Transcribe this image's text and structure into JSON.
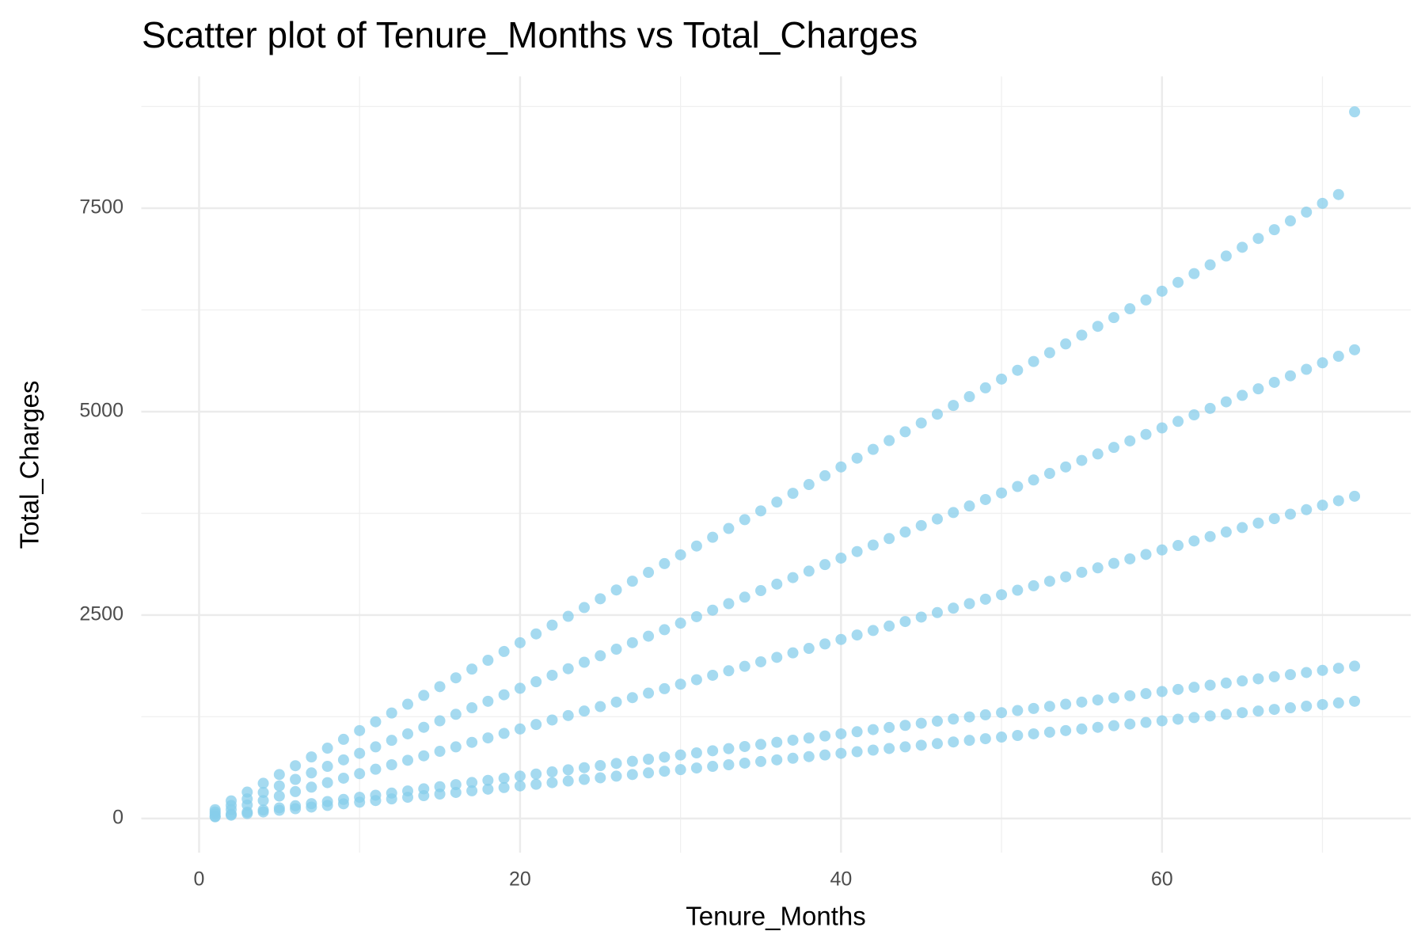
{
  "chart_data": {
    "type": "scatter",
    "title": "Scatter plot of Tenure_Months vs Total_Charges",
    "x_label": "Tenure_Months",
    "y_label": "Total_Charges",
    "xlim": [
      -3.6,
      75.5
    ],
    "ylim": [
      -420,
      9120
    ],
    "xticks": [
      0,
      20,
      40,
      60
    ],
    "yticks": [
      0,
      2500,
      5000,
      7500
    ],
    "xticks_minor": [
      10,
      30,
      50,
      70
    ],
    "yticks_minor": [
      1250,
      3750,
      6250,
      8750
    ],
    "grid": true,
    "color": "#87ceeb",
    "x": [
      1,
      2,
      3,
      4,
      5,
      6,
      7,
      8,
      9,
      10,
      11,
      12,
      13,
      14,
      15,
      16,
      17,
      18,
      19,
      20,
      21,
      22,
      23,
      24,
      25,
      26,
      27,
      28,
      29,
      30,
      31,
      32,
      33,
      34,
      35,
      36,
      37,
      38,
      39,
      40,
      41,
      42,
      43,
      44,
      45,
      46,
      47,
      48,
      49,
      50,
      51,
      52,
      53,
      54,
      55,
      56,
      57,
      58,
      59,
      60,
      61,
      62,
      63,
      64,
      65,
      66,
      67,
      68,
      69,
      70,
      71,
      72
    ],
    "series": [
      {
        "color": "#87ceeb",
        "values": [
          20,
          40,
          60,
          80,
          100,
          120,
          140,
          160,
          180,
          200,
          220,
          240,
          260,
          280,
          300,
          320,
          340,
          360,
          380,
          400,
          420,
          440,
          460,
          480,
          500,
          520,
          540,
          560,
          580,
          600,
          620,
          640,
          660,
          680,
          700,
          720,
          740,
          760,
          780,
          800,
          820,
          840,
          860,
          880,
          900,
          920,
          940,
          960,
          980,
          1000,
          1020,
          1040,
          1060,
          1080,
          1100,
          1120,
          1140,
          1160,
          1180,
          1200,
          1220,
          1240,
          1260,
          1280,
          1300,
          1320,
          1340,
          1360,
          1380,
          1400,
          1420,
          1440
        ]
      },
      {
        "color": "#87ceeb",
        "values": [
          26,
          52,
          78,
          104,
          130,
          156,
          182,
          208,
          234,
          260,
          286,
          312,
          338,
          364,
          390,
          416,
          442,
          468,
          494,
          520,
          546,
          572,
          598,
          624,
          650,
          676,
          702,
          728,
          754,
          780,
          806,
          832,
          858,
          884,
          910,
          936,
          962,
          988,
          1014,
          1040,
          1066,
          1092,
          1118,
          1144,
          1170,
          1196,
          1222,
          1248,
          1274,
          1300,
          1326,
          1352,
          1378,
          1404,
          1430,
          1456,
          1482,
          1508,
          1534,
          1560,
          1586,
          1612,
          1638,
          1664,
          1690,
          1716,
          1742,
          1768,
          1794,
          1820,
          1846,
          1872
        ]
      },
      {
        "color": "#87ceeb",
        "values": [
          55,
          110,
          165,
          220,
          275,
          330,
          385,
          440,
          495,
          550,
          605,
          660,
          715,
          770,
          825,
          880,
          935,
          990,
          1045,
          1100,
          1155,
          1210,
          1265,
          1320,
          1375,
          1430,
          1485,
          1540,
          1595,
          1650,
          1705,
          1760,
          1815,
          1870,
          1925,
          1980,
          2035,
          2090,
          2145,
          2200,
          2255,
          2310,
          2365,
          2420,
          2475,
          2530,
          2585,
          2640,
          2695,
          2750,
          2805,
          2860,
          2915,
          2970,
          3025,
          3080,
          3135,
          3190,
          3245,
          3300,
          3355,
          3410,
          3465,
          3520,
          3575,
          3630,
          3685,
          3740,
          3795,
          3850,
          3905,
          3960
        ]
      },
      {
        "color": "#87ceeb",
        "values": [
          80,
          160,
          240,
          320,
          400,
          480,
          560,
          640,
          720,
          800,
          880,
          960,
          1040,
          1120,
          1200,
          1280,
          1360,
          1440,
          1520,
          1600,
          1680,
          1760,
          1840,
          1920,
          2000,
          2080,
          2160,
          2240,
          2320,
          2400,
          2480,
          2560,
          2640,
          2720,
          2800,
          2880,
          2960,
          3040,
          3120,
          3200,
          3280,
          3360,
          3440,
          3520,
          3600,
          3680,
          3760,
          3840,
          3920,
          4000,
          4080,
          4160,
          4240,
          4320,
          4400,
          4480,
          4560,
          4640,
          4720,
          4800,
          4880,
          4960,
          5040,
          5120,
          5200,
          5280,
          5360,
          5440,
          5520,
          5600,
          5680,
          5760
        ]
      },
      {
        "color": "#87ceeb",
        "values": [
          108,
          216,
          324,
          432,
          540,
          648,
          756,
          864,
          972,
          1080,
          1188,
          1296,
          1404,
          1512,
          1620,
          1728,
          1836,
          1944,
          2052,
          2160,
          2268,
          2376,
          2484,
          2592,
          2700,
          2808,
          2916,
          3024,
          3132,
          3240,
          3348,
          3456,
          3564,
          3672,
          3780,
          3888,
          3996,
          4104,
          4212,
          4320,
          4428,
          4536,
          4644,
          4752,
          4860,
          4968,
          5076,
          5184,
          5292,
          5400,
          5508,
          5616,
          5724,
          5832,
          5940,
          6048,
          6156,
          6264,
          6372,
          6480,
          6588,
          6696,
          6804,
          6912,
          7020,
          7128,
          7236,
          7344,
          7452,
          7560,
          7668,
          8684
        ]
      }
    ]
  }
}
